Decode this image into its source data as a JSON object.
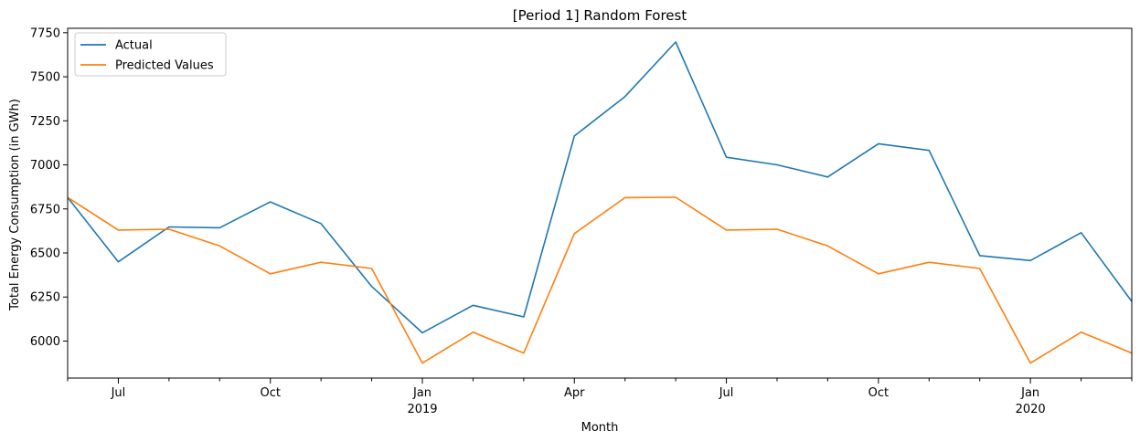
{
  "chart_data": {
    "type": "line",
    "title": "[Period 1] Random Forest",
    "xlabel": "Month",
    "ylabel": "Total Energy Consumption (in GWh)",
    "x": [
      "2018-06",
      "2018-07",
      "2018-08",
      "2018-09",
      "2018-10",
      "2018-11",
      "2018-12",
      "2019-01",
      "2019-02",
      "2019-03",
      "2019-04",
      "2019-05",
      "2019-06",
      "2019-07",
      "2019-08",
      "2019-09",
      "2019-10",
      "2019-11",
      "2019-12",
      "2020-01",
      "2020-02",
      "2020-03"
    ],
    "x_tick_labels": [
      {
        "x": "2018-07",
        "label": "Jul",
        "year": ""
      },
      {
        "x": "2018-10",
        "label": "Oct",
        "year": ""
      },
      {
        "x": "2019-01",
        "label": "Jan",
        "year": "2019"
      },
      {
        "x": "2019-04",
        "label": "Apr",
        "year": ""
      },
      {
        "x": "2019-07",
        "label": "Jul",
        "year": ""
      },
      {
        "x": "2019-10",
        "label": "Oct",
        "year": ""
      },
      {
        "x": "2020-01",
        "label": "Jan",
        "year": "2020"
      }
    ],
    "y_ticks": [
      6000,
      6250,
      6500,
      6750,
      7000,
      7250,
      7500,
      7750
    ],
    "ylim": [
      5790,
      7775
    ],
    "grid": false,
    "legend_position": "upper-left",
    "series": [
      {
        "name": "Actual",
        "color": "#1f77b4",
        "values": [
          6815,
          6450,
          6648,
          6643,
          6790,
          6667,
          6310,
          6047,
          6203,
          6137,
          7164,
          7388,
          7697,
          7043,
          7000,
          6931,
          7120,
          7082,
          6485,
          6457,
          6615,
          6225
        ]
      },
      {
        "name": "Predicted Values",
        "color": "#ff7f0e",
        "values": [
          6815,
          6630,
          6635,
          6540,
          6382,
          6447,
          6412,
          5875,
          6050,
          5932,
          6610,
          6814,
          6816,
          6630,
          6635,
          6540,
          6382,
          6447,
          6412,
          5875,
          6050,
          5932
        ]
      }
    ]
  }
}
